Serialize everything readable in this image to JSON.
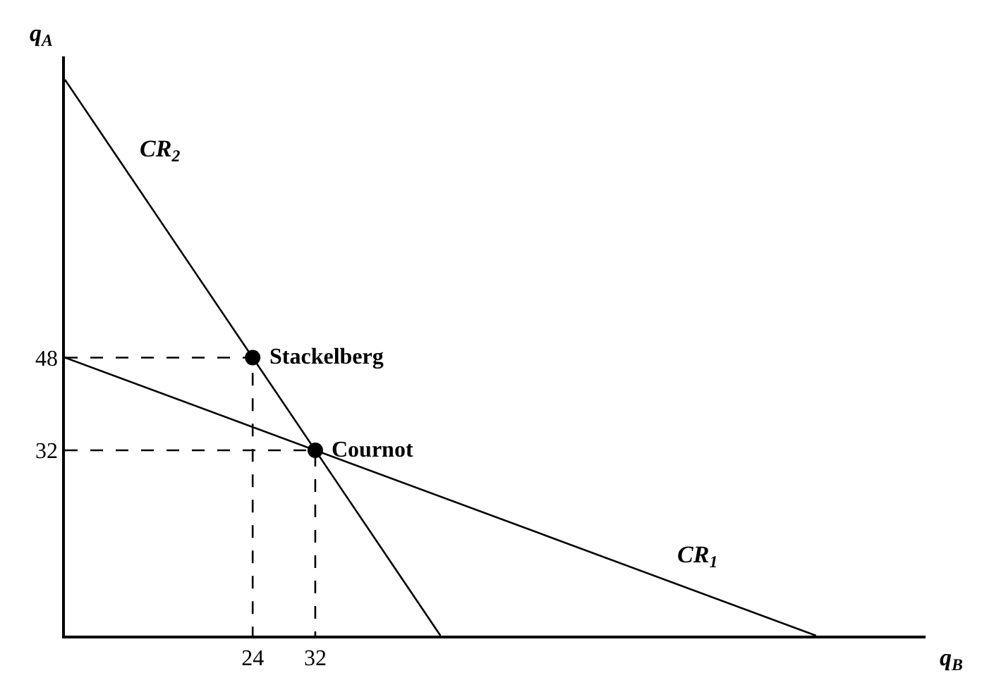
{
  "chart_data": {
    "type": "line",
    "xlabel": "q$_{B}$",
    "ylabel": "q$_{A}$",
    "xlim": [
      0,
      110
    ],
    "ylim": [
      0,
      100
    ],
    "xticks": [
      24,
      32
    ],
    "yticks": [
      32,
      48
    ],
    "series": [
      {
        "name": "CR$_{2}$",
        "color": "#000000",
        "x": [
          0,
          48
        ],
        "values": [
          96,
          0
        ],
        "line_style": "solid"
      },
      {
        "name": "CR$_{1}$",
        "color": "#000000",
        "x": [
          0,
          96
        ],
        "values": [
          48,
          0
        ],
        "line_style": "solid"
      },
      {
        "color": "#000000",
        "x": [
          0,
          24,
          24
        ],
        "values": [
          48,
          48,
          0
        ],
        "line_style": "dashed"
      },
      {
        "color": "#000000",
        "x": [
          0,
          32,
          32
        ],
        "values": [
          32,
          32,
          0
        ],
        "line_style": "dashed"
      },
      {
        "type": "scatter",
        "color": "#000000",
        "x": [
          24,
          32
        ],
        "values": [
          48,
          32
        ],
        "marker": "circle"
      }
    ],
    "annotations": [
      {
        "text": "Stackelberg",
        "x": 24,
        "y": 48
      },
      {
        "text": "Cournot",
        "x": 32,
        "y": 32
      }
    ]
  }
}
